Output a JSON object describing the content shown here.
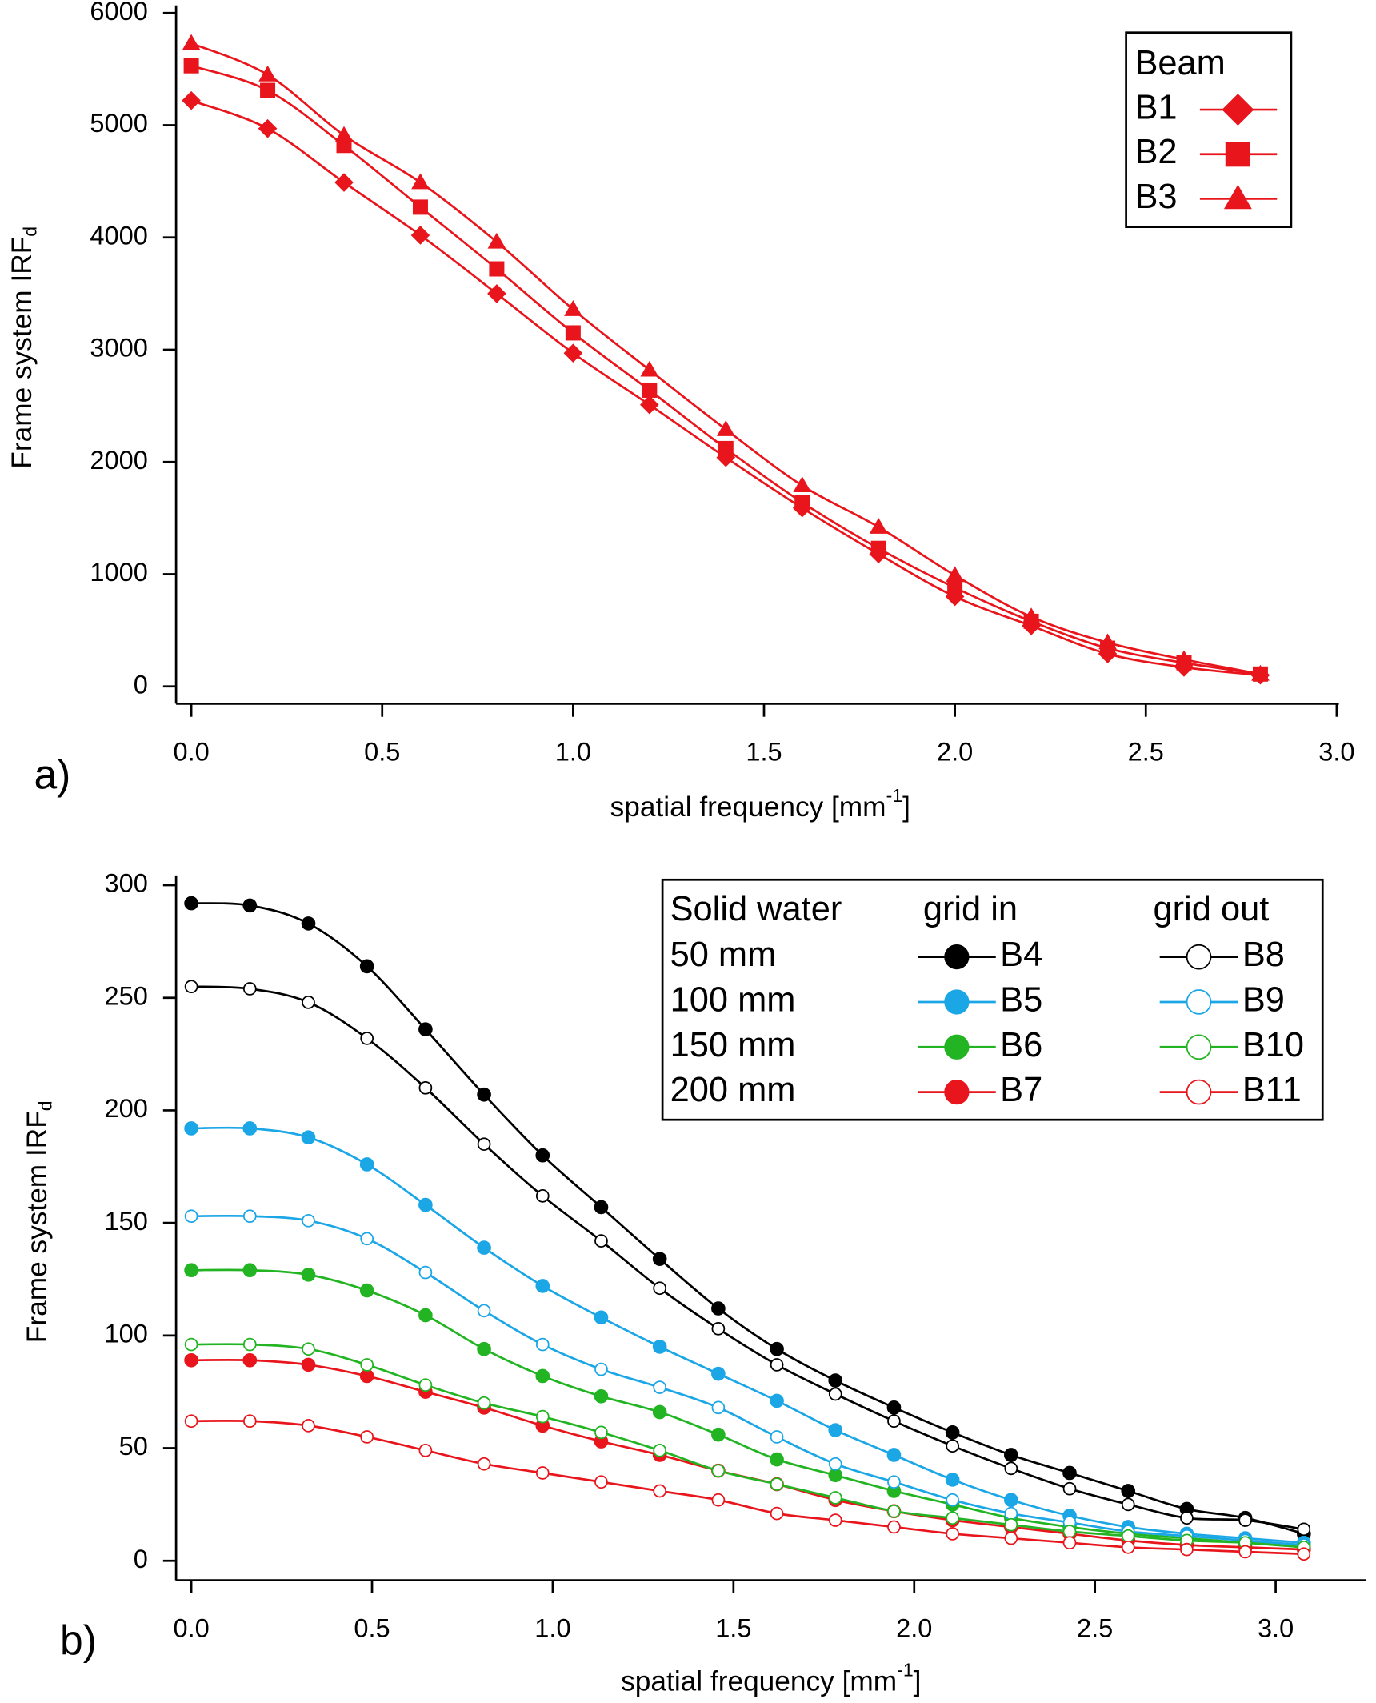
{
  "chart_data": [
    {
      "type": "line",
      "panel_label": "a)",
      "xlabel": "spatial frequency [mm",
      "xlabel_superscript": "-1",
      "xlabel_suffix": "]",
      "ylabel": "Frame system IRF",
      "ylabel_subscript": "d",
      "x": [
        0,
        0.2,
        0.4,
        0.6,
        0.8,
        1.0,
        1.2,
        1.4,
        1.6,
        1.8,
        2.0,
        2.2,
        2.4,
        2.6,
        2.8
      ],
      "xlim": [
        0,
        3.0
      ],
      "xticks": [
        {
          "value": 0,
          "label": "0.0"
        },
        0.5,
        {
          "value": 1,
          "label": "1.0"
        },
        1.5,
        {
          "value": 2,
          "label": "2.0"
        },
        2.5,
        {
          "value": 3,
          "label": "3.0"
        }
      ],
      "ylim": [
        0,
        6000
      ],
      "yticks": [
        0,
        1000,
        2000,
        3000,
        4000,
        5000,
        6000
      ],
      "legend_title": "Beam",
      "series": [
        {
          "name": "B1",
          "color": "#e8161c",
          "marker": "diamond",
          "fill": "filled",
          "values": [
            5220,
            4970,
            4490,
            4020,
            3500,
            2970,
            2510,
            2040,
            1590,
            1180,
            800,
            540,
            290,
            170,
            100
          ]
        },
        {
          "name": "B2",
          "color": "#e8161c",
          "marker": "square",
          "fill": "filled",
          "values": [
            5530,
            5310,
            4820,
            4270,
            3720,
            3150,
            2640,
            2120,
            1640,
            1230,
            880,
            580,
            340,
            210,
            110
          ]
        },
        {
          "name": "B3",
          "color": "#e8161c",
          "marker": "triangle",
          "fill": "filled",
          "values": [
            5730,
            5450,
            4910,
            4490,
            3960,
            3360,
            2820,
            2290,
            1790,
            1420,
            990,
            620,
            390,
            240,
            110
          ]
        }
      ]
    },
    {
      "type": "line",
      "panel_label": "b)",
      "xlabel": "spatial frequency [mm",
      "xlabel_superscript": "-1",
      "xlabel_suffix": "]",
      "ylabel": "Frame system IRF",
      "ylabel_subscript": "d",
      "x": [
        0,
        0.162,
        0.324,
        0.486,
        0.648,
        0.81,
        0.972,
        1.134,
        1.296,
        1.458,
        1.62,
        1.782,
        1.944,
        2.106,
        2.268,
        2.43,
        2.592,
        2.754,
        2.916,
        3.078
      ],
      "xlim": [
        0,
        3.25
      ],
      "xticks": [
        {
          "value": 0,
          "label": "0.0"
        },
        0.5,
        {
          "value": 1,
          "label": "1.0"
        },
        1.5,
        {
          "value": 2,
          "label": "2.0"
        },
        2.5,
        {
          "value": 3,
          "label": "3.0"
        }
      ],
      "ylim": [
        0,
        300
      ],
      "yticks": [
        0,
        50,
        100,
        150,
        200,
        250,
        300
      ],
      "legend_headers": [
        "Solid water",
        "grid in",
        "grid out"
      ],
      "legend_rows": [
        "50 mm",
        "100 mm",
        "150 mm",
        "200 mm"
      ],
      "series": [
        {
          "name": "B4",
          "color": "#000000",
          "marker": "circle",
          "fill": "filled",
          "values": [
            292,
            291,
            283,
            264,
            236,
            207,
            180,
            157,
            134,
            112,
            94,
            80,
            68,
            57,
            47,
            39,
            31,
            23,
            19,
            12
          ]
        },
        {
          "name": "B5",
          "color": "#1ba6e6",
          "marker": "circle",
          "fill": "filled",
          "values": [
            192,
            192,
            188,
            176,
            158,
            139,
            122,
            108,
            95,
            83,
            71,
            58,
            47,
            36,
            27,
            20,
            15,
            12,
            10,
            8
          ]
        },
        {
          "name": "B6",
          "color": "#22b422",
          "marker": "circle",
          "fill": "filled",
          "values": [
            129,
            129,
            127,
            120,
            109,
            94,
            82,
            73,
            66,
            56,
            45,
            38,
            31,
            25,
            19,
            15,
            12,
            10,
            8,
            6
          ]
        },
        {
          "name": "B7",
          "color": "#e8161c",
          "marker": "circle",
          "fill": "filled",
          "values": [
            89,
            89,
            87,
            82,
            75,
            68,
            60,
            53,
            47,
            40,
            34,
            27,
            22,
            18,
            15,
            12,
            9,
            7,
            6,
            5
          ]
        },
        {
          "name": "B8",
          "color": "#000000",
          "marker": "circle",
          "fill": "open",
          "values": [
            255,
            254,
            248,
            232,
            210,
            185,
            162,
            142,
            121,
            103,
            87,
            74,
            62,
            51,
            41,
            32,
            25,
            19,
            18,
            14
          ]
        },
        {
          "name": "B9",
          "color": "#1ba6e6",
          "marker": "circle",
          "fill": "open",
          "values": [
            153,
            153,
            151,
            143,
            128,
            111,
            96,
            85,
            77,
            68,
            55,
            43,
            35,
            27,
            21,
            17,
            13,
            11,
            9,
            7
          ]
        },
        {
          "name": "B10",
          "color": "#22b422",
          "marker": "circle",
          "fill": "open",
          "values": [
            96,
            96,
            94,
            87,
            78,
            70,
            64,
            57,
            49,
            40,
            34,
            28,
            22,
            19,
            16,
            13,
            11,
            9,
            8,
            6
          ]
        },
        {
          "name": "B11",
          "color": "#e8161c",
          "marker": "circle",
          "fill": "open",
          "values": [
            62,
            62,
            60,
            55,
            49,
            43,
            39,
            35,
            31,
            27,
            21,
            18,
            15,
            12,
            10,
            8,
            6,
            5,
            4,
            3
          ]
        }
      ]
    }
  ]
}
